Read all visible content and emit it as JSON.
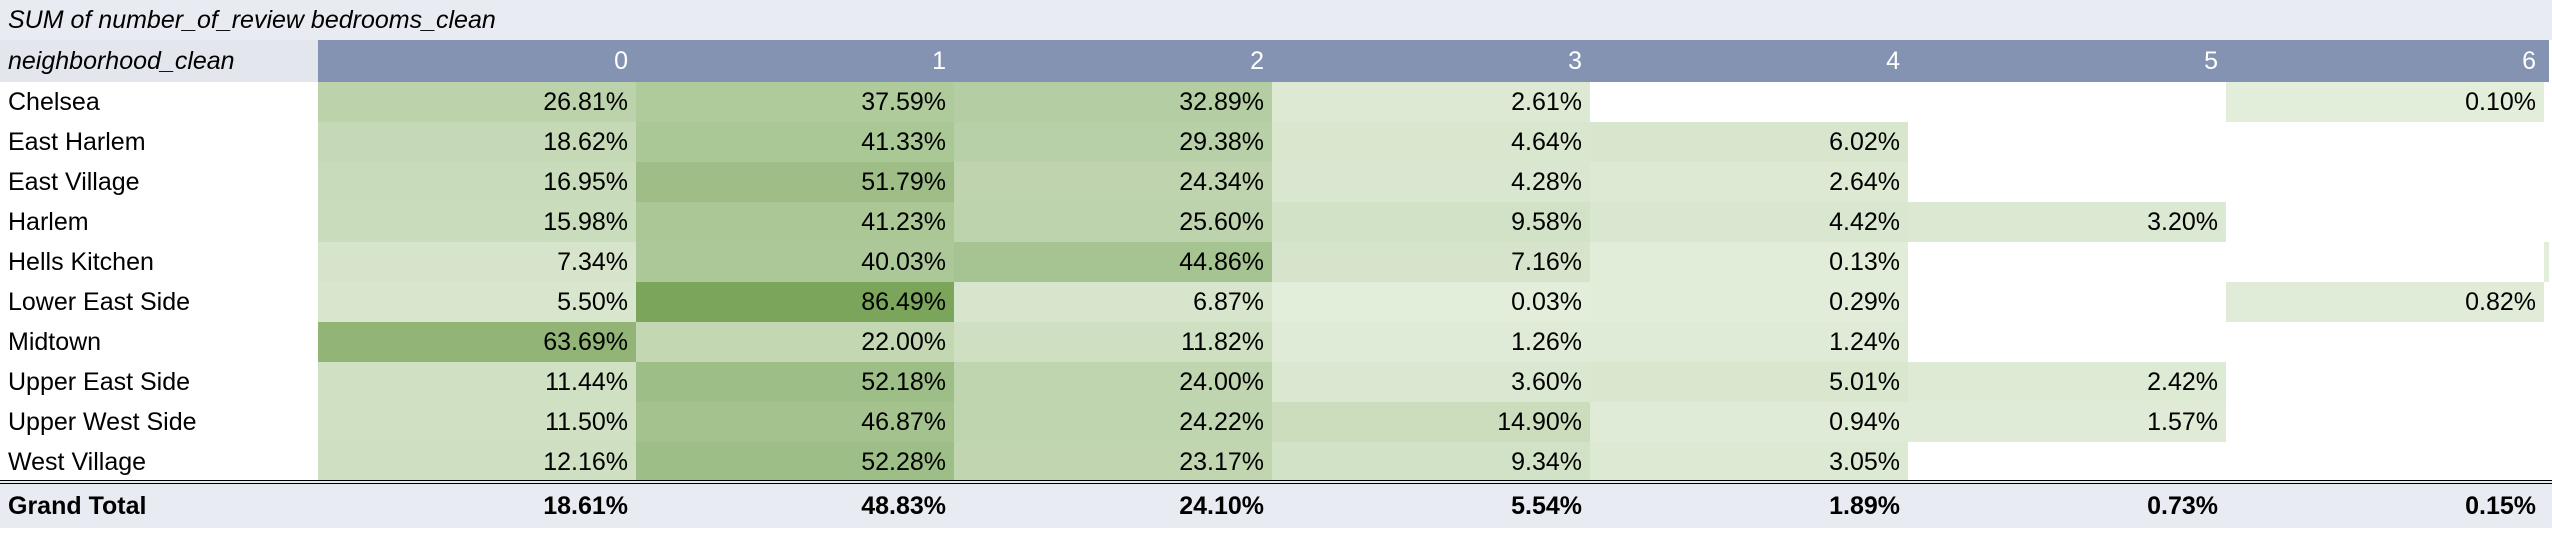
{
  "title": {
    "value_field": "SUM of number_of_review",
    "column_field": "bedrooms_clean"
  },
  "header": {
    "row_field": "neighborhood_clean",
    "columns": [
      "0",
      "1",
      "2",
      "3",
      "4",
      "5",
      "6"
    ]
  },
  "rows": [
    {
      "name": "Chelsea",
      "cells": [
        "26.81%",
        "37.59%",
        "32.89%",
        "2.61%",
        "",
        "",
        "0.10%"
      ],
      "v": [
        26.81,
        37.59,
        32.89,
        2.61,
        null,
        null,
        0.1
      ],
      "edge": false
    },
    {
      "name": "East Harlem",
      "cells": [
        "18.62%",
        "41.33%",
        "29.38%",
        "4.64%",
        "6.02%",
        "",
        ""
      ],
      "v": [
        18.62,
        41.33,
        29.38,
        4.64,
        6.02,
        null,
        null
      ],
      "edge": false
    },
    {
      "name": "East Village",
      "cells": [
        "16.95%",
        "51.79%",
        "24.34%",
        "4.28%",
        "2.64%",
        "",
        ""
      ],
      "v": [
        16.95,
        51.79,
        24.34,
        4.28,
        2.64,
        null,
        null
      ],
      "edge": false
    },
    {
      "name": "Harlem",
      "cells": [
        "15.98%",
        "41.23%",
        "25.60%",
        "9.58%",
        "4.42%",
        "3.20%",
        ""
      ],
      "v": [
        15.98,
        41.23,
        25.6,
        9.58,
        4.42,
        3.2,
        null
      ],
      "edge": false
    },
    {
      "name": "Hells Kitchen",
      "cells": [
        "7.34%",
        "40.03%",
        "44.86%",
        "7.16%",
        "0.13%",
        "",
        ""
      ],
      "v": [
        7.34,
        40.03,
        44.86,
        7.16,
        0.13,
        null,
        null
      ],
      "edge": true
    },
    {
      "name": "Lower East Side",
      "cells": [
        "5.50%",
        "86.49%",
        "6.87%",
        "0.03%",
        "0.29%",
        "",
        "0.82%"
      ],
      "v": [
        5.5,
        86.49,
        6.87,
        0.03,
        0.29,
        null,
        0.82
      ],
      "edge": false
    },
    {
      "name": "Midtown",
      "cells": [
        "63.69%",
        "22.00%",
        "11.82%",
        "1.26%",
        "1.24%",
        "",
        ""
      ],
      "v": [
        63.69,
        22.0,
        11.82,
        1.26,
        1.24,
        null,
        null
      ],
      "edge": false
    },
    {
      "name": "Upper East Side",
      "cells": [
        "11.44%",
        "52.18%",
        "24.00%",
        "3.60%",
        "5.01%",
        "2.42%",
        ""
      ],
      "v": [
        11.44,
        52.18,
        24.0,
        3.6,
        5.01,
        2.42,
        null
      ],
      "edge": false
    },
    {
      "name": "Upper West Side",
      "cells": [
        "11.50%",
        "46.87%",
        "24.22%",
        "14.90%",
        "0.94%",
        "1.57%",
        ""
      ],
      "v": [
        11.5,
        46.87,
        24.22,
        14.9,
        0.94,
        1.57,
        null
      ],
      "edge": false
    },
    {
      "name": "West Village",
      "cells": [
        "12.16%",
        "52.28%",
        "23.17%",
        "9.34%",
        "3.05%",
        "",
        ""
      ],
      "v": [
        12.16,
        52.28,
        23.17,
        9.34,
        3.05,
        null,
        null
      ],
      "edge": false
    }
  ],
  "grand_total": {
    "label": "Grand Total",
    "cells": [
      "18.61%",
      "48.83%",
      "24.10%",
      "5.54%",
      "1.89%",
      "0.73%",
      "0.15%"
    ]
  },
  "colors": {
    "header_bg": "#8593b2",
    "title_bg": "#e8ebf1",
    "scale_low": "#e2edda",
    "scale_high": "#7aa55a"
  }
}
